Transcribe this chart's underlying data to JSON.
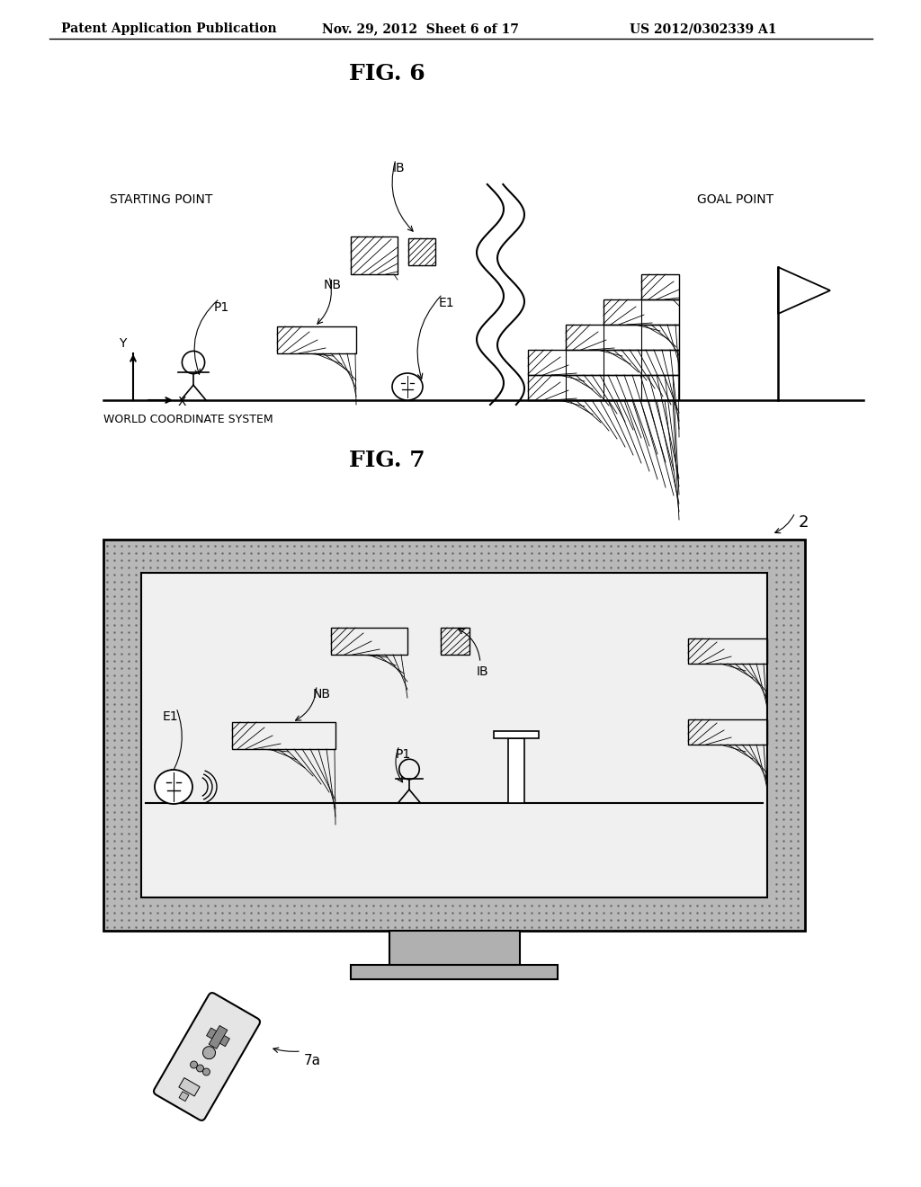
{
  "title1": "FIG. 6",
  "title2": "FIG. 7",
  "header_left": "Patent Application Publication",
  "header_center": "Nov. 29, 2012  Sheet 6 of 17",
  "header_right": "US 2012/0302339 A1",
  "bg_color": "#ffffff",
  "line_color": "#000000"
}
